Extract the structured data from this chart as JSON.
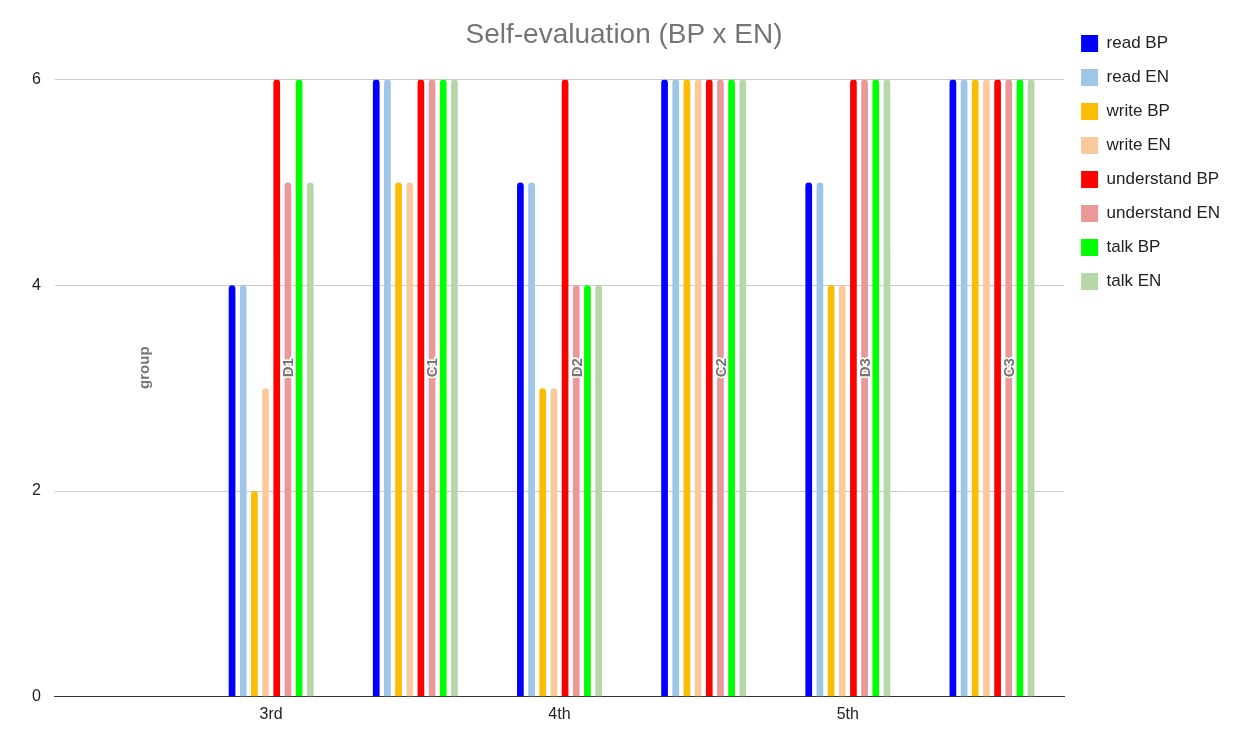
{
  "chart_data": {
    "type": "bar",
    "title": "Self-evaluation (BP x EN)",
    "categories": [
      null,
      "3rd",
      null,
      "4th",
      null,
      "5th",
      null
    ],
    "series": [
      {
        "name": "read BP",
        "color": "#0000ff",
        "values": [
          null,
          4,
          6,
          5,
          6,
          5,
          6
        ]
      },
      {
        "name": "read EN",
        "color": "#9fc5e8",
        "values": [
          null,
          4,
          6,
          5,
          6,
          5,
          6
        ]
      },
      {
        "name": "write BP",
        "color": "#fbbc04",
        "values": [
          null,
          2,
          5,
          3,
          6,
          4,
          6
        ]
      },
      {
        "name": "write EN",
        "color": "#f9cb9c",
        "values": [
          null,
          3,
          5,
          3,
          6,
          4,
          6
        ]
      },
      {
        "name": "understand BP",
        "color": "#ff0000",
        "values": [
          null,
          6,
          6,
          6,
          6,
          6,
          6
        ]
      },
      {
        "name": "understand EN",
        "color": "#ea9999",
        "values": [
          null,
          5,
          6,
          4,
          6,
          6,
          6
        ]
      },
      {
        "name": "talk BP",
        "color": "#00ff00",
        "values": [
          null,
          6,
          6,
          4,
          6,
          6,
          6
        ]
      },
      {
        "name": "talk EN",
        "color": "#b6d7a8",
        "values": [
          null,
          5,
          6,
          4,
          6,
          6,
          6
        ]
      }
    ],
    "annotations": [
      "group",
      "D1",
      "C1",
      "D2",
      "C2",
      "D3",
      "C3"
    ],
    "ylim": [
      0,
      6
    ],
    "yticks": [
      0,
      2,
      4,
      6
    ],
    "grid": "y",
    "legend": "right"
  }
}
